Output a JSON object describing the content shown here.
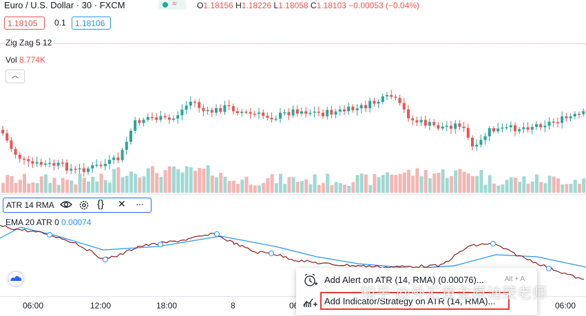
{
  "header": {
    "symbol": "Euro / U.S. Dollar · 30 · FXCM",
    "ohlc": {
      "o_key": "O",
      "o": "1.18156",
      "h_key": "H",
      "h": "1.18226",
      "l_key": "L",
      "l": "1.18058",
      "c_key": "C",
      "c": "1.18103",
      "change": "−0.00053 (−0.04%)"
    },
    "status_icon": "≈"
  },
  "trade": {
    "sell": "1.18105",
    "spread": "0.1",
    "buy": "1.18106"
  },
  "indicators": {
    "zigzag": "Zig Zag 5 12",
    "vol_label": "Vol",
    "vol_value": "8.774K",
    "collapse": "︿"
  },
  "atr_pane": {
    "title": "ATR 14 RMA",
    "ema_label": "EMA 20 ATR 0",
    "ema_value": "0.00074",
    "icons": [
      "eye-icon",
      "gear-icon",
      "braces-icon",
      "close-icon",
      "more-icon"
    ]
  },
  "xaxis": {
    "ticks": [
      "06:00",
      "12:00",
      "18:00",
      "8",
      "06:00"
    ],
    "partial_tick": "06"
  },
  "context_menu": {
    "items": [
      {
        "label": "Add Alert on ATR (14, RMA) (0.00076)...",
        "hotkey": "Alt + A",
        "icon": "alarm-plus-icon"
      },
      {
        "label": "Add Indicator/Strategy on ATR (14, RMA)...",
        "hotkey": "",
        "icon": "indicator-plus-icon"
      }
    ]
  },
  "watermark": "知乎 @外汇黄金原油荣老师",
  "colors": {
    "up": "#26a69a",
    "down": "#ef5350",
    "atr": "#2196f3",
    "ema": "#8b1a1a",
    "highlight": "#e53935"
  }
}
